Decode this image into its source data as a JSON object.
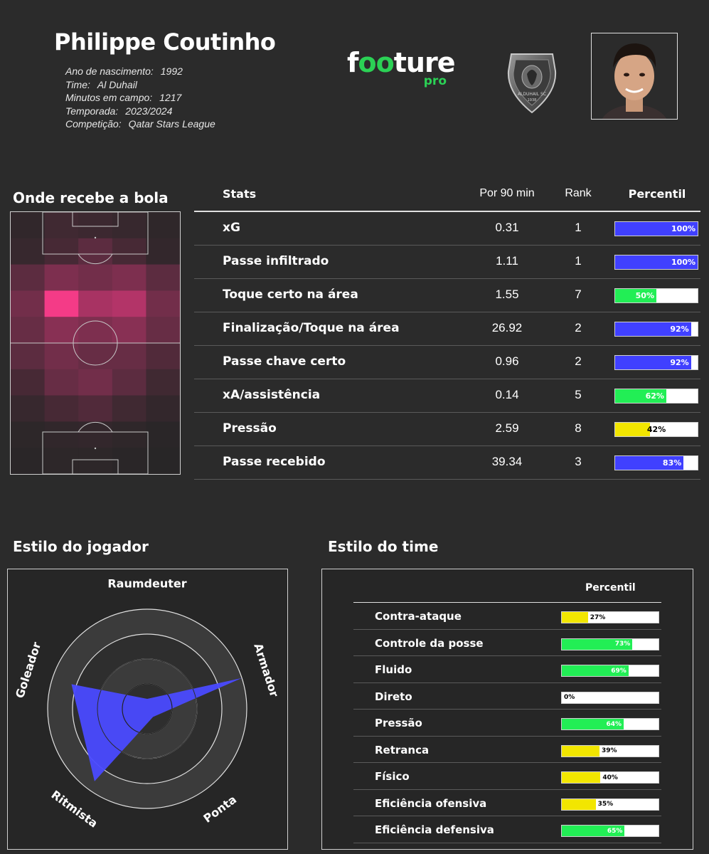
{
  "header": {
    "player_name": "Philippe Coutinho",
    "info": [
      {
        "label": "Ano de nascimento:",
        "value": "1992"
      },
      {
        "label": "Time:",
        "value": "Al Duhail"
      },
      {
        "label": "Minutos em campo:",
        "value": "1217"
      },
      {
        "label": "Temporada:",
        "value": "2023/2024"
      },
      {
        "label": "Competição:",
        "value": "Qatar Stars League"
      }
    ],
    "brand": {
      "f": "f",
      "oo": "oo",
      "ture": "ture",
      "sub": "pro"
    },
    "crest_text": "ALDUHAIL SC",
    "crest_year": "1938"
  },
  "heatmap": {
    "title": "Onde recebe a bola",
    "orientation": "vertical pitch, 5 columns × 10 rows of zones",
    "intensity": [
      [
        0.05,
        0.12,
        0.1,
        0.08,
        0.04
      ],
      [
        0.08,
        0.15,
        0.25,
        0.15,
        0.06
      ],
      [
        0.25,
        0.4,
        0.35,
        0.4,
        0.25
      ],
      [
        0.35,
        0.95,
        0.6,
        0.65,
        0.35
      ],
      [
        0.3,
        0.45,
        0.4,
        0.45,
        0.3
      ],
      [
        0.25,
        0.35,
        0.3,
        0.3,
        0.2
      ],
      [
        0.15,
        0.3,
        0.35,
        0.25,
        0.12
      ],
      [
        0.08,
        0.15,
        0.2,
        0.12,
        0.06
      ],
      [
        0.03,
        0.05,
        0.06,
        0.04,
        0.02
      ],
      [
        0.02,
        0.03,
        0.03,
        0.02,
        0.01
      ]
    ]
  },
  "stats": {
    "headers": {
      "stat": "Stats",
      "p90": "Por 90 min",
      "rank": "Rank",
      "pct": "Percentil"
    },
    "rows": [
      {
        "label": "xG",
        "p90": "0.31",
        "rank": "1",
        "percentile": 100,
        "pct_text": "100%",
        "color": "#4040ff"
      },
      {
        "label": "Passe infiltrado",
        "p90": "1.11",
        "rank": "1",
        "percentile": 100,
        "pct_text": "100%",
        "color": "#4040ff"
      },
      {
        "label": "Toque certo na área",
        "p90": "1.55",
        "rank": "7",
        "percentile": 50,
        "pct_text": "50%",
        "color": "#22ee55"
      },
      {
        "label": "Finalização/Toque na área",
        "p90": "26.92",
        "rank": "2",
        "percentile": 92,
        "pct_text": "92%",
        "color": "#4040ff"
      },
      {
        "label": "Passe chave certo",
        "p90": "0.96",
        "rank": "2",
        "percentile": 92,
        "pct_text": "92%",
        "color": "#4040ff"
      },
      {
        "label": "xA/assistência",
        "p90": "0.14",
        "rank": "5",
        "percentile": 62,
        "pct_text": "62%",
        "color": "#22ee55"
      },
      {
        "label": "Pressão",
        "p90": "2.59",
        "rank": "8",
        "percentile": 42,
        "pct_text": "42%",
        "color": "#f2e600"
      },
      {
        "label": "Passe recebido",
        "p90": "39.34",
        "rank": "3",
        "percentile": 83,
        "pct_text": "83%",
        "color": "#4040ff"
      }
    ]
  },
  "player_style": {
    "title": "Estilo do jogador",
    "axes": [
      "Raumdeuter",
      "Armador",
      "Ponta",
      "Ritmista",
      "Goleador"
    ],
    "values": [
      0.1,
      1.0,
      0.1,
      0.9,
      0.8
    ],
    "fill_color": "#4a4aff"
  },
  "team_style": {
    "title": "Estilo do time",
    "header": "Percentil",
    "rows": [
      {
        "label": "Contra-ataque",
        "percentile": 27,
        "pct_text": "27%",
        "color": "#f2e600"
      },
      {
        "label": "Controle da posse",
        "percentile": 73,
        "pct_text": "73%",
        "color": "#22ee55"
      },
      {
        "label": "Fluido",
        "percentile": 69,
        "pct_text": "69%",
        "color": "#22ee55"
      },
      {
        "label": "Direto",
        "percentile": 0,
        "pct_text": "0%",
        "color": "#ffffff"
      },
      {
        "label": "Pressão",
        "percentile": 64,
        "pct_text": "64%",
        "color": "#22ee55"
      },
      {
        "label": "Retranca",
        "percentile": 39,
        "pct_text": "39%",
        "color": "#f2e600"
      },
      {
        "label": "Físico",
        "percentile": 40,
        "pct_text": "40%",
        "color": "#f2e600"
      },
      {
        "label": "Eficiência ofensiva",
        "percentile": 35,
        "pct_text": "35%",
        "color": "#f2e600"
      },
      {
        "label": "Eficiência defensiva",
        "percentile": 65,
        "pct_text": "65%",
        "color": "#22ee55"
      }
    ]
  }
}
